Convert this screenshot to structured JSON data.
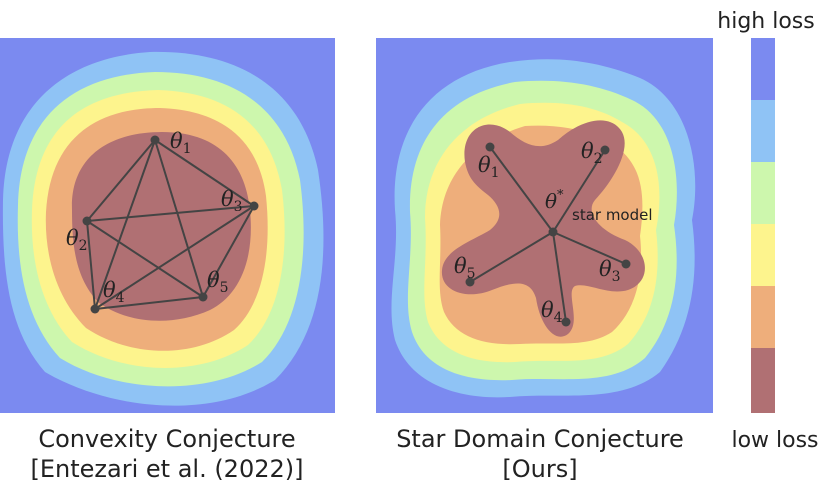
{
  "colors": {
    "high_loss": "#7b8af0",
    "level_1": "#8fc3f5",
    "level_2": "#cdf7ad",
    "level_3": "#fdf48d",
    "level_4": "#eeae7b",
    "low_loss": "#b07073",
    "edge": "#444444",
    "text": "#222222"
  },
  "legend": {
    "top_label": "high loss",
    "bottom_label": "low loss"
  },
  "left_panel": {
    "caption_line1": "Convexity Conjecture",
    "caption_line2": "[Entezari et al. (2022)]",
    "nodes": [
      {
        "id": "n1",
        "label": "θ",
        "sub": "1"
      },
      {
        "id": "n2",
        "label": "θ",
        "sub": "2"
      },
      {
        "id": "n3",
        "label": "θ",
        "sub": "3"
      },
      {
        "id": "n4",
        "label": "θ",
        "sub": "4"
      },
      {
        "id": "n5",
        "label": "θ",
        "sub": "5"
      }
    ]
  },
  "right_panel": {
    "caption_line1": "Star Domain Conjecture",
    "caption_line2": "[Ours]",
    "center_label": "θ",
    "center_sup": "*",
    "center_text": "star model",
    "nodes": [
      {
        "id": "s1",
        "label": "θ",
        "sub": "1"
      },
      {
        "id": "s2",
        "label": "θ",
        "sub": "2"
      },
      {
        "id": "s3",
        "label": "θ",
        "sub": "3"
      },
      {
        "id": "s4",
        "label": "θ",
        "sub": "4"
      },
      {
        "id": "s5",
        "label": "θ",
        "sub": "5"
      }
    ]
  }
}
